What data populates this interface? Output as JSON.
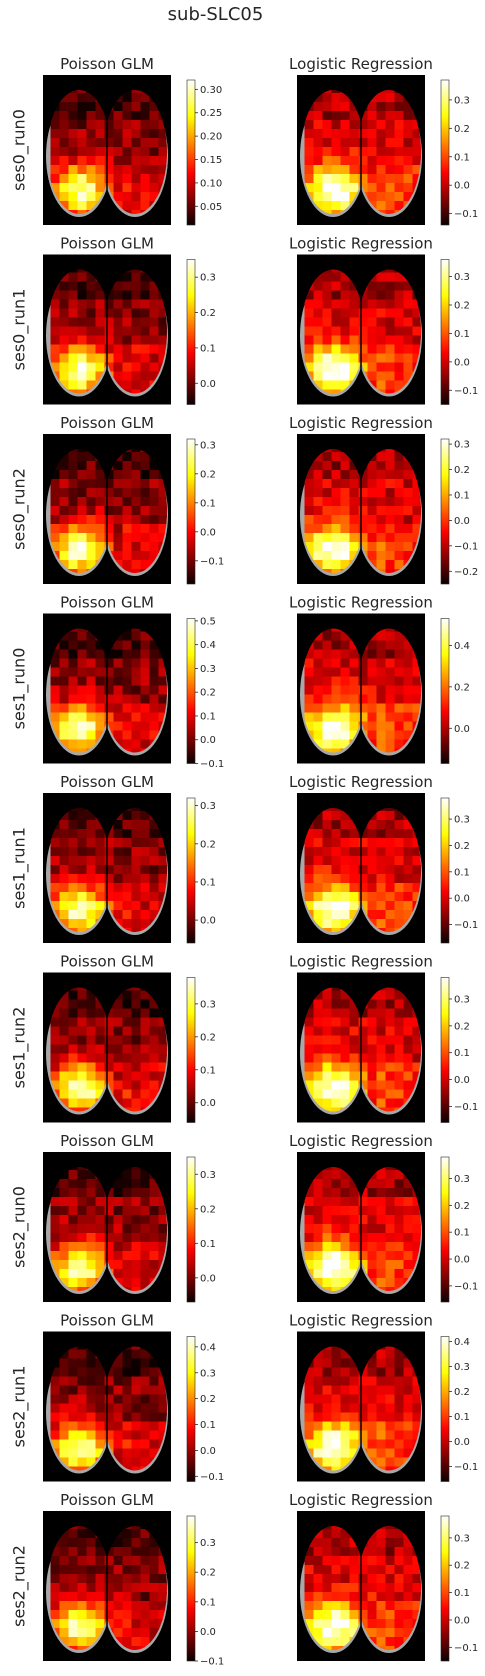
{
  "figure_title": "sub-SLC05",
  "chart_data": {
    "type": "heatmap",
    "colormap": "hot",
    "grid": false,
    "columns": [
      "Poisson GLM",
      "Logistic Regression"
    ],
    "rows": [
      {
        "label": "ses0_run0",
        "panels": [
          {
            "title": "Poisson GLM",
            "range": [
              0.01,
              0.32
            ],
            "ticks": [
              "0.05",
              "0.10",
              "0.15",
              "0.20",
              "0.25",
              "0.30"
            ]
          },
          {
            "title": "Logistic Regression",
            "range": [
              -0.14,
              0.37
            ],
            "ticks": [
              "−0.1",
              "0.0",
              "0.1",
              "0.2",
              "0.3"
            ]
          }
        ]
      },
      {
        "label": "ses0_run1",
        "panels": [
          {
            "title": "Poisson GLM",
            "range": [
              -0.06,
              0.35
            ],
            "ticks": [
              "0.0",
              "0.1",
              "0.2",
              "0.3"
            ]
          },
          {
            "title": "Logistic Regression",
            "range": [
              -0.15,
              0.36
            ],
            "ticks": [
              "−0.1",
              "0.0",
              "0.1",
              "0.2",
              "0.3"
            ]
          }
        ]
      },
      {
        "label": "ses0_run2",
        "panels": [
          {
            "title": "Poisson GLM",
            "range": [
              -0.18,
              0.32
            ],
            "ticks": [
              "−0.1",
              "0.0",
              "0.1",
              "0.2",
              "0.3"
            ]
          },
          {
            "title": "Logistic Regression",
            "range": [
              -0.25,
              0.32
            ],
            "ticks": [
              "−0.2",
              "−0.1",
              "0.0",
              "0.1",
              "0.2",
              "0.3"
            ]
          }
        ]
      },
      {
        "label": "ses1_run0",
        "panels": [
          {
            "title": "Poisson GLM",
            "range": [
              -0.1,
              0.51
            ],
            "ticks": [
              "−0.1",
              "0.0",
              "0.1",
              "0.2",
              "0.3",
              "0.4",
              "0.5"
            ]
          },
          {
            "title": "Logistic Regression",
            "range": [
              -0.17,
              0.53
            ],
            "ticks": [
              "0.0",
              "0.2",
              "0.4"
            ]
          }
        ]
      },
      {
        "label": "ses1_run1",
        "panels": [
          {
            "title": "Poisson GLM",
            "range": [
              -0.06,
              0.32
            ],
            "ticks": [
              "0.0",
              "0.1",
              "0.2",
              "0.3"
            ]
          },
          {
            "title": "Logistic Regression",
            "range": [
              -0.17,
              0.38
            ],
            "ticks": [
              "−0.1",
              "0.0",
              "0.1",
              "0.2",
              "0.3"
            ]
          }
        ]
      },
      {
        "label": "ses1_run2",
        "panels": [
          {
            "title": "Poisson GLM",
            "range": [
              -0.06,
              0.38
            ],
            "ticks": [
              "0.0",
              "0.1",
              "0.2",
              "0.3"
            ]
          },
          {
            "title": "Logistic Regression",
            "range": [
              -0.16,
              0.38
            ],
            "ticks": [
              "−0.1",
              "0.0",
              "0.1",
              "0.2",
              "0.3"
            ]
          }
        ]
      },
      {
        "label": "ses2_run0",
        "panels": [
          {
            "title": "Poisson GLM",
            "range": [
              -0.07,
              0.35
            ],
            "ticks": [
              "0.0",
              "0.1",
              "0.2",
              "0.3"
            ]
          },
          {
            "title": "Logistic Regression",
            "range": [
              -0.16,
              0.38
            ],
            "ticks": [
              "−0.1",
              "0.0",
              "0.1",
              "0.2",
              "0.3"
            ]
          }
        ]
      },
      {
        "label": "ses2_run1",
        "panels": [
          {
            "title": "Poisson GLM",
            "range": [
              -0.12,
              0.44
            ],
            "ticks": [
              "−0.1",
              "0.0",
              "0.1",
              "0.2",
              "0.3",
              "0.4"
            ]
          },
          {
            "title": "Logistic Regression",
            "range": [
              -0.16,
              0.42
            ],
            "ticks": [
              "−0.1",
              "0.0",
              "0.1",
              "0.2",
              "0.3",
              "0.4"
            ]
          }
        ]
      },
      {
        "label": "ses2_run2",
        "panels": [
          {
            "title": "Poisson GLM",
            "range": [
              -0.1,
              0.39
            ],
            "ticks": [
              "−0.1",
              "0.0",
              "0.1",
              "0.2",
              "0.3"
            ]
          },
          {
            "title": "Logistic Regression",
            "range": [
              -0.15,
              0.38
            ],
            "ticks": [
              "−0.1",
              "0.0",
              "0.1",
              "0.2",
              "0.3"
            ]
          }
        ]
      }
    ]
  }
}
